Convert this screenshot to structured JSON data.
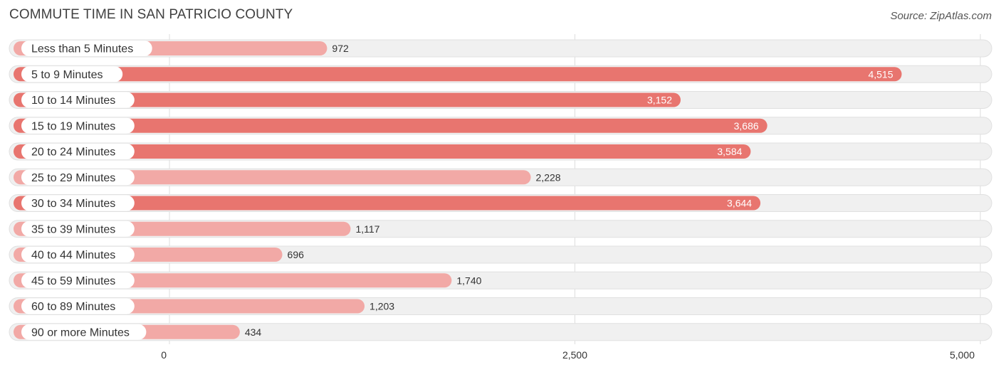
{
  "header": {
    "title": "COMMUTE TIME IN SAN PATRICIO COUNTY",
    "source": "Source: ZipAtlas.com"
  },
  "colors": {
    "bar_strong": "#e8756f",
    "bar_light": "#f2a9a6",
    "track": "#f0f0f0",
    "track_border": "#e0e0e0",
    "grid": "#dddddd"
  },
  "chart_data": {
    "type": "bar",
    "orientation": "horizontal",
    "title": "COMMUTE TIME IN SAN PATRICIO COUNTY",
    "categories": [
      "Less than 5 Minutes",
      "5 to 9 Minutes",
      "10 to 14 Minutes",
      "15 to 19 Minutes",
      "20 to 24 Minutes",
      "25 to 29 Minutes",
      "30 to 34 Minutes",
      "35 to 39 Minutes",
      "40 to 44 Minutes",
      "45 to 59 Minutes",
      "60 to 89 Minutes",
      "90 or more Minutes"
    ],
    "values": [
      972,
      4515,
      3152,
      3686,
      3584,
      2228,
      3644,
      1117,
      696,
      1740,
      1203,
      434
    ],
    "value_labels": [
      "972",
      "4,515",
      "3,152",
      "3,686",
      "3,584",
      "2,228",
      "3,644",
      "1,117",
      "696",
      "1,740",
      "1,203",
      "434"
    ],
    "xlim": [
      0,
      5000
    ],
    "ticks": [
      0,
      2500,
      5000
    ],
    "tick_labels": [
      "0",
      "2,500",
      "5,000"
    ],
    "grid": true,
    "legend": "none"
  }
}
